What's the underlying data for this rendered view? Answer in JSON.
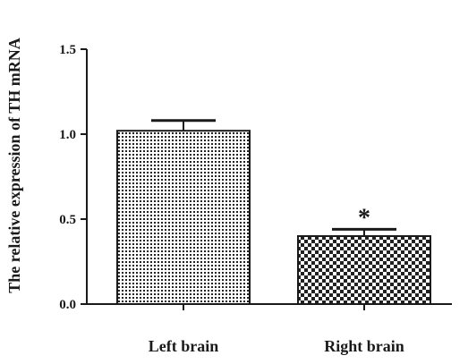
{
  "chart_data": {
    "type": "bar",
    "title": "",
    "xlabel": "",
    "ylabel": "The relative expression of TH mRNA",
    "categories": [
      "Left brain",
      "Right brain"
    ],
    "values": [
      1.02,
      0.4
    ],
    "error": [
      0.06,
      0.04
    ],
    "annotations": [
      "",
      "*"
    ],
    "ylim": [
      0.0,
      1.5
    ],
    "yticks": [
      0.0,
      0.5,
      1.0,
      1.5
    ],
    "ytick_labels": [
      "0.0",
      "0.5",
      "1.0",
      "1.5"
    ],
    "grid": false,
    "legend": "none",
    "patterns": [
      "dots",
      "checker"
    ]
  }
}
